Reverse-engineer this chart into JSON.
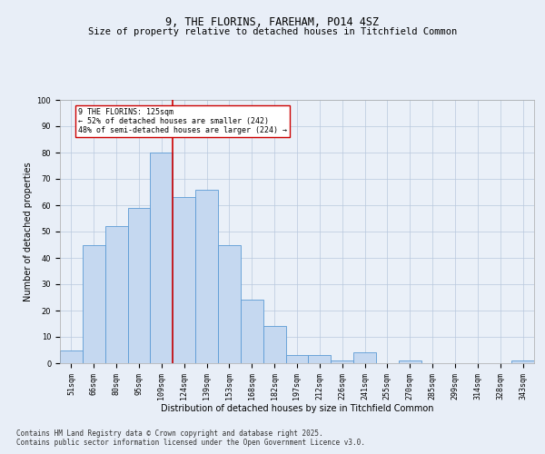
{
  "title": "9, THE FLORINS, FAREHAM, PO14 4SZ",
  "subtitle": "Size of property relative to detached houses in Titchfield Common",
  "xlabel": "Distribution of detached houses by size in Titchfield Common",
  "ylabel": "Number of detached properties",
  "categories": [
    "51sqm",
    "66sqm",
    "80sqm",
    "95sqm",
    "109sqm",
    "124sqm",
    "139sqm",
    "153sqm",
    "168sqm",
    "182sqm",
    "197sqm",
    "212sqm",
    "226sqm",
    "241sqm",
    "255sqm",
    "270sqm",
    "285sqm",
    "299sqm",
    "314sqm",
    "328sqm",
    "343sqm"
  ],
  "values": [
    5,
    45,
    52,
    59,
    80,
    63,
    66,
    45,
    24,
    14,
    3,
    3,
    1,
    4,
    0,
    1,
    0,
    0,
    0,
    0,
    1
  ],
  "bar_color": "#c5d8f0",
  "bar_edge_color": "#5b9bd5",
  "vline_x": 4.5,
  "vline_color": "#cc0000",
  "annotation_text": "9 THE FLORINS: 125sqm\n← 52% of detached houses are smaller (242)\n48% of semi-detached houses are larger (224) →",
  "annotation_box_color": "#ffffff",
  "annotation_box_edge_color": "#cc0000",
  "background_color": "#e8eef7",
  "plot_bg_color": "#eaf0f8",
  "footer_text": "Contains HM Land Registry data © Crown copyright and database right 2025.\nContains public sector information licensed under the Open Government Licence v3.0.",
  "ylim": [
    0,
    100
  ],
  "title_fontsize": 8.5,
  "subtitle_fontsize": 7.5,
  "tick_fontsize": 6,
  "ylabel_fontsize": 7,
  "xlabel_fontsize": 7,
  "footer_fontsize": 5.5,
  "annotation_fontsize": 6
}
